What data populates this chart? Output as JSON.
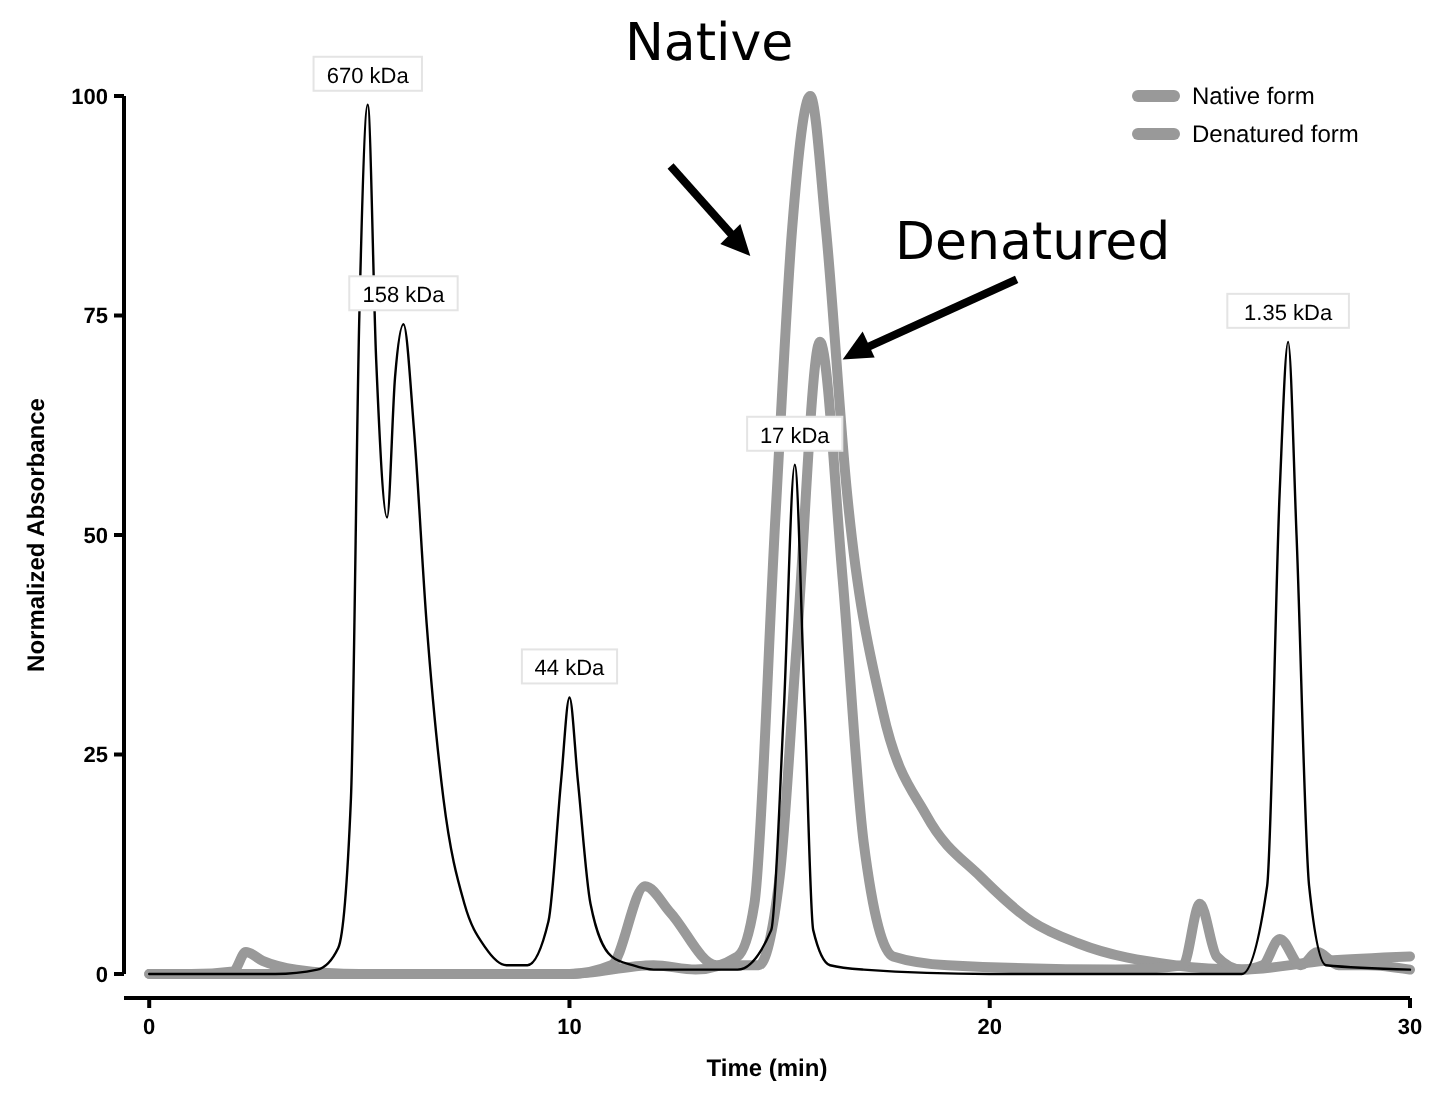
{
  "chart_data": {
    "type": "line",
    "xlabel": "Time (min)",
    "ylabel": "Normalized Absorbance",
    "xlim": [
      -0.6,
      30
    ],
    "xticks": [
      0,
      10,
      20,
      30
    ],
    "ylim": [
      0,
      100
    ],
    "yticks": [
      0,
      25,
      50,
      75,
      100
    ],
    "grid": false,
    "legend": "top right",
    "marker": "none",
    "line_style": "solid",
    "series": [
      {
        "color": "#000000",
        "x": [
          0,
          1,
          2,
          3,
          4,
          4.5,
          4.8,
          5.0,
          5.2,
          5.4,
          5.66,
          5.85,
          6.05,
          6.3,
          6.6,
          7,
          7.5,
          8,
          8.5,
          9,
          9.5,
          9.8,
          10,
          10.2,
          10.5,
          11,
          11.5,
          12,
          14,
          14.8,
          15.1,
          15.36,
          15.6,
          15.8,
          16.2,
          17,
          20,
          26,
          26.6,
          26.9,
          27.1,
          27.3,
          27.6,
          28,
          30
        ],
        "values": [
          0,
          0,
          0,
          0,
          0.5,
          3,
          20,
          75,
          99,
          70,
          52,
          68,
          74,
          62,
          40,
          20,
          8,
          3,
          1,
          1,
          6,
          22,
          31.5,
          22,
          8,
          2,
          1,
          0.5,
          0.5,
          5,
          30,
          58,
          30,
          5,
          1,
          0.5,
          0,
          0,
          10,
          55,
          72,
          50,
          10,
          1,
          0.5
        ]
      },
      {
        "name": "Native form",
        "color": "#999999",
        "x": [
          0,
          1,
          2,
          2.3,
          2.7,
          3.5,
          5,
          10,
          12,
          13,
          14,
          14.4,
          14.9,
          15.3,
          15.73,
          16.1,
          16.6,
          17.45,
          18.5,
          19.8,
          21,
          22.1,
          24.4,
          26,
          28,
          30
        ],
        "values": [
          0,
          0,
          0.3,
          2.5,
          1.5,
          0.5,
          0,
          0,
          1,
          0.5,
          2,
          8,
          52,
          85,
          100,
          85,
          55,
          30,
          18,
          11,
          6,
          3.5,
          1,
          0.5,
          1.5,
          2
        ]
      },
      {
        "name": "Denatured form",
        "color": "#999999",
        "x": [
          0,
          5,
          10,
          11,
          11.8,
          12.4,
          13.5,
          14.5,
          15,
          15.4,
          15.96,
          16.5,
          17,
          17.7,
          19,
          23,
          24.6,
          25,
          25.4,
          26,
          26.5,
          26.9,
          27.4,
          27.8,
          28.3,
          29,
          30
        ],
        "values": [
          0,
          0,
          0,
          1,
          10,
          7,
          1,
          1,
          11,
          37,
          72,
          45,
          15,
          2,
          1,
          0.5,
          1,
          8,
          2,
          0.5,
          1,
          4,
          1,
          2.5,
          1,
          1,
          0.5
        ]
      }
    ],
    "annotations": [
      {
        "text": "670 kDa",
        "x": 5.2,
        "y": 99
      },
      {
        "text": "158 kDa",
        "x": 6.05,
        "y": 74
      },
      {
        "text": "44 kDa",
        "x": 10,
        "y": 31.5
      },
      {
        "text": "17 kDa",
        "x": 15.36,
        "y": 58
      },
      {
        "text": "1.35 kDa",
        "x": 27.1,
        "y": 72
      },
      "Native",
      {
        "text": "Denatured",
        "x": 16.5,
        "y": 70
      }
    ]
  }
}
